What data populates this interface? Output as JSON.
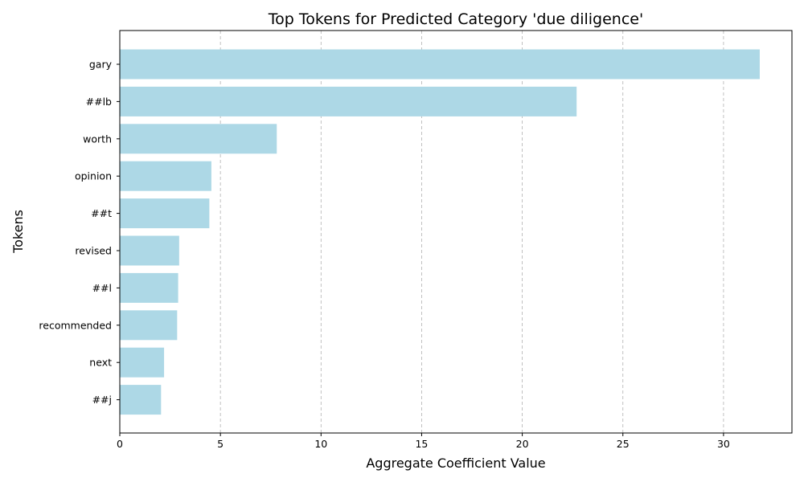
{
  "chart_data": {
    "type": "bar",
    "orientation": "horizontal",
    "title": "Top Tokens for Predicted Category 'due diligence'",
    "xlabel": "Aggregate Coefficient Value",
    "ylabel": "Tokens",
    "categories": [
      "gary",
      "##lb",
      "worth",
      "opinion",
      "##t",
      "revised",
      "##l",
      "recommended",
      "next",
      "##j"
    ],
    "values": [
      31.8,
      22.7,
      7.8,
      4.55,
      4.45,
      2.95,
      2.9,
      2.85,
      2.2,
      2.05
    ],
    "xlim": [
      0,
      33.4
    ],
    "xticks": [
      0,
      5,
      10,
      15,
      20,
      25,
      30
    ],
    "grid": "x-dashed",
    "bar_color": "#add8e6"
  }
}
